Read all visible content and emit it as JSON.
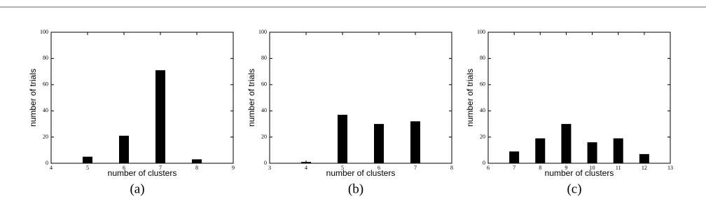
{
  "chart_data": [
    {
      "type": "bar",
      "caption": "(a)",
      "xlabel": "number of clusters",
      "ylabel": "number of trials",
      "x": [
        5,
        6,
        7,
        8
      ],
      "values": [
        5,
        21,
        71,
        3
      ],
      "color": "#000000",
      "xlim": [
        4,
        9
      ],
      "xticks": [
        4,
        5,
        6,
        7,
        8,
        9
      ],
      "ylim": [
        0,
        100
      ],
      "yticks": [
        0,
        20,
        40,
        60,
        80,
        100
      ]
    },
    {
      "type": "bar",
      "caption": "(b)",
      "xlabel": "number of clusters",
      "ylabel": "number of trials",
      "x": [
        4,
        5,
        6,
        7
      ],
      "values": [
        1,
        37,
        30,
        32
      ],
      "color": "#000000",
      "xlim": [
        3,
        8
      ],
      "xticks": [
        3,
        4,
        5,
        6,
        7,
        8
      ],
      "ylim": [
        0,
        100
      ],
      "yticks": [
        0,
        20,
        40,
        60,
        80,
        100
      ]
    },
    {
      "type": "bar",
      "caption": "(c)",
      "xlabel": "number of clusters",
      "ylabel": "number of trials",
      "x": [
        7,
        8,
        9,
        10,
        11,
        12
      ],
      "values": [
        9,
        19,
        30,
        16,
        19,
        7
      ],
      "color": "#000000",
      "xlim": [
        6,
        13
      ],
      "xticks": [
        6,
        7,
        8,
        9,
        10,
        11,
        12,
        13
      ],
      "ylim": [
        0,
        100
      ],
      "yticks": [
        0,
        20,
        40,
        60,
        80,
        100
      ]
    }
  ]
}
